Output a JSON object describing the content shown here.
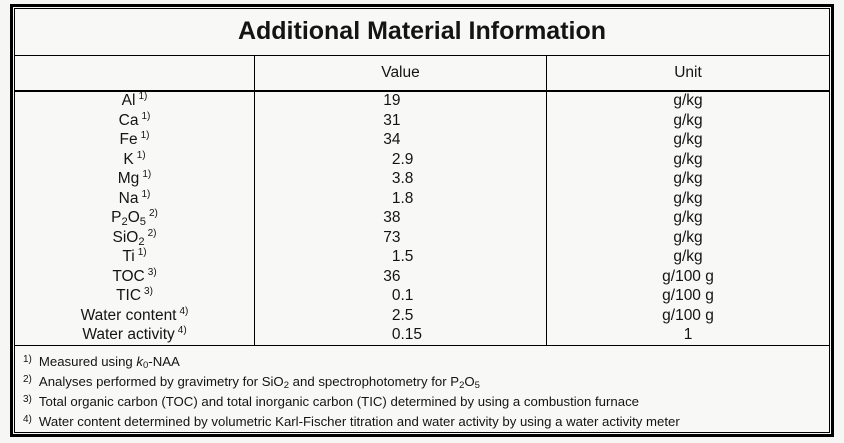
{
  "title": "Additional Material Information",
  "table": {
    "columns": [
      "",
      "Value",
      "Unit"
    ],
    "rows": [
      {
        "param": "Al",
        "note": "1)",
        "value": "19",
        "unit": "g/kg"
      },
      {
        "param": "Ca",
        "note": "1)",
        "value": "31",
        "unit": "g/kg"
      },
      {
        "param": "Fe",
        "note": "1)",
        "value": "34",
        "unit": "g/kg"
      },
      {
        "param": "K",
        "note": "1)",
        "value": "2.9",
        "unit": "g/kg"
      },
      {
        "param": "Mg",
        "note": "1)",
        "value": "3.8",
        "unit": "g/kg"
      },
      {
        "param": "Na",
        "note": "1)",
        "value": "1.8",
        "unit": "g/kg"
      },
      {
        "param": "P~2~O~5~",
        "note": "2)",
        "value": "38",
        "unit": "g/kg"
      },
      {
        "param": "SiO~2~",
        "note": "2)",
        "value": "73",
        "unit": "g/kg"
      },
      {
        "param": "Ti",
        "note": "1)",
        "value": "1.5",
        "unit": "g/kg"
      },
      {
        "param": "TOC",
        "note": "3)",
        "value": "36",
        "unit": "g/100 g"
      },
      {
        "param": "TIC",
        "note": "3)",
        "value": "0.1",
        "unit": "g/100 g"
      },
      {
        "param": "Water content",
        "note": "4)",
        "value": "2.5",
        "unit": "g/100 g"
      },
      {
        "param": "Water activity",
        "note": "4)",
        "value": "0.15",
        "unit": "1"
      }
    ]
  },
  "footnotes": [
    {
      "marker": "1)",
      "text": "Measured using *k*~0~-NAA"
    },
    {
      "marker": "2)",
      "text": "Analyses performed by gravimetry for SiO~2~ and spectrophotometry for P~2~O~5~"
    },
    {
      "marker": "3)",
      "text": "Total organic carbon (TOC) and total inorganic carbon (TIC) determined by using a combustion furnace"
    },
    {
      "marker": "4)",
      "text": "Water content determined by volumetric Karl-Fischer titration and water activity by using a water activity meter"
    }
  ],
  "colors": {
    "border": "#000000",
    "text": "#141414",
    "paper": "#f8f8f6"
  }
}
